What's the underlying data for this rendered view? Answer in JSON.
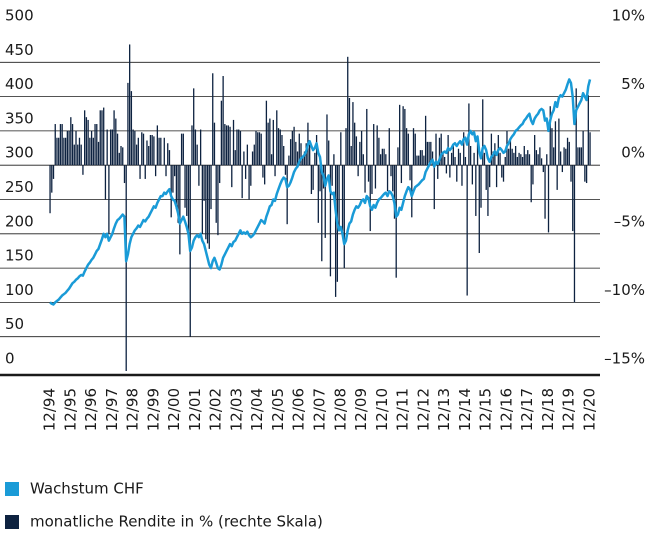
{
  "chart_data": {
    "type": "combo",
    "categories": [
      "12/94",
      null,
      null,
      null,
      null,
      null,
      null,
      null,
      null,
      null,
      null,
      null,
      "12/95",
      null,
      null,
      null,
      null,
      null,
      null,
      null,
      null,
      null,
      null,
      null,
      "12/96",
      null,
      null,
      null,
      null,
      null,
      null,
      null,
      null,
      null,
      null,
      null,
      "12/97",
      null,
      null,
      null,
      null,
      null,
      null,
      null,
      null,
      null,
      null,
      null,
      "12/98",
      null,
      null,
      null,
      null,
      null,
      null,
      null,
      null,
      null,
      null,
      null,
      "12/99",
      null,
      null,
      null,
      null,
      null,
      null,
      null,
      null,
      null,
      null,
      null,
      "12/00",
      null,
      null,
      null,
      null,
      null,
      null,
      null,
      null,
      null,
      null,
      null,
      "12/01",
      null,
      null,
      null,
      null,
      null,
      null,
      null,
      null,
      null,
      null,
      null,
      "12/02",
      null,
      null,
      null,
      null,
      null,
      null,
      null,
      null,
      null,
      null,
      null,
      "12/03",
      null,
      null,
      null,
      null,
      null,
      null,
      null,
      null,
      null,
      null,
      null,
      "12/04",
      null,
      null,
      null,
      null,
      null,
      null,
      null,
      null,
      null,
      null,
      null,
      "12/05",
      null,
      null,
      null,
      null,
      null,
      null,
      null,
      null,
      null,
      null,
      null,
      "12/06",
      null,
      null,
      null,
      null,
      null,
      null,
      null,
      null,
      null,
      null,
      null,
      "12/07",
      null,
      null,
      null,
      null,
      null,
      null,
      null,
      null,
      null,
      null,
      null,
      "12/08",
      null,
      null,
      null,
      null,
      null,
      null,
      null,
      null,
      null,
      null,
      null,
      "12/09",
      null,
      null,
      null,
      null,
      null,
      null,
      null,
      null,
      null,
      null,
      null,
      "12/10",
      null,
      null,
      null,
      null,
      null,
      null,
      null,
      null,
      null,
      null,
      null,
      "12/11",
      null,
      null,
      null,
      null,
      null,
      null,
      null,
      null,
      null,
      null,
      null,
      "12/12",
      null,
      null,
      null,
      null,
      null,
      null,
      null,
      null,
      null,
      null,
      null,
      "12/13",
      null,
      null,
      null,
      null,
      null,
      null,
      null,
      null,
      null,
      null,
      null,
      "12/14",
      null,
      null,
      null,
      null,
      null,
      null,
      null,
      null,
      null,
      null,
      null,
      "12/15",
      null,
      null,
      null,
      null,
      null,
      null,
      null,
      null,
      null,
      null,
      null,
      "12/16",
      null,
      null,
      null,
      null,
      null,
      null,
      null,
      null,
      null,
      null,
      null,
      "12/17",
      null,
      null,
      null,
      null,
      null,
      null,
      null,
      null,
      null,
      null,
      null,
      "12/18",
      null,
      null,
      null,
      null,
      null,
      null,
      null,
      null,
      null,
      null,
      null,
      "12/19",
      null,
      null,
      null,
      null,
      null,
      null,
      null,
      null,
      null,
      null,
      null,
      "12/20"
    ],
    "series": [
      {
        "name": "Wachstum CHF",
        "type": "line",
        "color": "#1a9bd7",
        "values": [
          100,
          98,
          97,
          100,
          102,
          104,
          107,
          110,
          112,
          114,
          117,
          120,
          124,
          128,
          130,
          133,
          135,
          138,
          140,
          139,
          145,
          150,
          155,
          158,
          162,
          165,
          170,
          175,
          178,
          185,
          192,
          200,
          195,
          200,
          190,
          195,
          200,
          208,
          215,
          220,
          222,
          225,
          228,
          225,
          160,
          170,
          185,
          195,
          200,
          205,
          208,
          212,
          210,
          215,
          220,
          218,
          222,
          225,
          230,
          235,
          240,
          238,
          245,
          250,
          255,
          255,
          260,
          258,
          262,
          265,
          255,
          250,
          248,
          240,
          230,
          215,
          220,
          225,
          218,
          210,
          200,
          175,
          180,
          190,
          195,
          198,
          195,
          200,
          190,
          185,
          175,
          165,
          155,
          150,
          160,
          165,
          158,
          150,
          148,
          155,
          165,
          170,
          175,
          180,
          185,
          182,
          188,
          190,
          195,
          200,
          205,
          200,
          202,
          200,
          203,
          198,
          195,
          197,
          200,
          205,
          210,
          215,
          220,
          218,
          215,
          225,
          232,
          240,
          242,
          250,
          248,
          258,
          265,
          272,
          278,
          282,
          280,
          268,
          270,
          275,
          282,
          290,
          295,
          298,
          305,
          310,
          312,
          315,
          320,
          330,
          335,
          328,
          322,
          325,
          332,
          318,
          312,
          290,
          285,
          270,
          280,
          285,
          262,
          258,
          260,
          235,
          215,
          205,
          210,
          200,
          185,
          190,
          205,
          215,
          218,
          228,
          235,
          240,
          238,
          242,
          248,
          250,
          245,
          255,
          252,
          240,
          235,
          242,
          238,
          245,
          250,
          252,
          255,
          258,
          260,
          255,
          262,
          260,
          255,
          245,
          225,
          228,
          238,
          235,
          245,
          255,
          262,
          268,
          265,
          255,
          262,
          268,
          270,
          272,
          275,
          278,
          280,
          290,
          295,
          300,
          305,
          308,
          298,
          305,
          302,
          308,
          315,
          318,
          320,
          318,
          325,
          322,
          325,
          330,
          332,
          328,
          332,
          335,
          330,
          338,
          340,
          330,
          345,
          350,
          345,
          348,
          335,
          342,
          320,
          310,
          325,
          328,
          322,
          310,
          305,
          312,
          315,
          320,
          315,
          322,
          325,
          322,
          318,
          320,
          328,
          332,
          338,
          342,
          345,
          350,
          352,
          355,
          358,
          360,
          365,
          368,
          372,
          375,
          365,
          360,
          368,
          372,
          375,
          380,
          382,
          380,
          365,
          368,
          350,
          365,
          375,
          380,
          392,
          385,
          398,
          402,
          400,
          405,
          410,
          418,
          425,
          420,
          400,
          360,
          380,
          385,
          390,
          395,
          405,
          400,
          395,
          415,
          425
        ]
      },
      {
        "name": "monatliche Rendite in % (rechte Skala)",
        "type": "bar",
        "axis": "y2",
        "color": "#0d2240",
        "values": [
          -3.5,
          -2,
          -1,
          3,
          2,
          2,
          3,
          3,
          2,
          2,
          2.5,
          2.5,
          3.5,
          3,
          1.5,
          2.5,
          1.5,
          2,
          1.5,
          -0.7,
          4,
          3.5,
          3.3,
          2,
          2.5,
          2,
          3,
          3,
          1.7,
          4,
          4,
          4.2,
          -2.5,
          2.6,
          -5,
          2.6,
          2.6,
          4,
          3.4,
          2.3,
          0.9,
          1.4,
          1.3,
          -1.3,
          -15,
          6,
          8.8,
          5.4,
          2.6,
          2.5,
          1.5,
          2,
          -1,
          2.4,
          2.3,
          -1,
          1.8,
          1.4,
          2.2,
          2.2,
          2.1,
          -0.8,
          2.9,
          2,
          2,
          0,
          2,
          -0.8,
          1.6,
          1.1,
          -3.8,
          -2,
          -0.8,
          -3.2,
          -4.2,
          -6.5,
          2.3,
          2.3,
          -3.1,
          -3.7,
          -4.8,
          -12.5,
          2.9,
          5.6,
          2.6,
          1.5,
          -1.5,
          2.6,
          -5,
          -2.6,
          -5.4,
          -5.7,
          -6.1,
          -3.2,
          6.7,
          3.1,
          -4.2,
          -5.1,
          -1.3,
          4.7,
          6.5,
          3,
          2.9,
          2.9,
          2.8,
          -1.6,
          3.3,
          1.1,
          2.6,
          2.6,
          2.5,
          -2.4,
          1,
          -1,
          1.5,
          -2.5,
          -1.5,
          1,
          1.5,
          2.5,
          2.4,
          2.4,
          2.3,
          -0.9,
          -1.4,
          4.7,
          3.1,
          3.4,
          0.8,
          3.3,
          -0.8,
          4,
          2.7,
          2.6,
          2.2,
          1.4,
          -0.7,
          -4.3,
          0.7,
          1.9,
          2.5,
          2.8,
          1.7,
          1,
          2.3,
          1.6,
          0.6,
          1,
          1.6,
          3.1,
          1.5,
          -2.1,
          -1.8,
          0.9,
          2.2,
          -4.2,
          -1.9,
          -7,
          -1.7,
          -5.3,
          3.7,
          1.8,
          -8.1,
          -1.5,
          0.8,
          -9.6,
          -8.5,
          -4.7,
          2.4,
          -4.8,
          -7.5,
          2.7,
          7.9,
          4.9,
          1.4,
          4.6,
          3.1,
          2.1,
          -0.8,
          1.7,
          2.5,
          0.8,
          -2,
          4.1,
          -1.2,
          -4.8,
          -2.1,
          3,
          -1.7,
          2.9,
          2,
          0.8,
          1.2,
          1.2,
          0.8,
          -1.9,
          2.7,
          -0.8,
          -1.9,
          -3.9,
          -8.2,
          1.3,
          4.4,
          -1.3,
          4.3,
          4.1,
          2.7,
          2.3,
          -1.1,
          -3.8,
          2.7,
          2.3,
          0.7,
          0.7,
          1.1,
          1.1,
          0.7,
          3.6,
          1.7,
          1.7,
          1.7,
          1,
          -3.2,
          2.3,
          -1,
          2,
          2.3,
          1,
          0.6,
          -0.6,
          2.2,
          -0.9,
          0.9,
          1.5,
          0.6,
          -1.2,
          1.2,
          0.9,
          -1.5,
          2.4,
          0.6,
          -9.5,
          4.5,
          1.4,
          -1.4,
          0.9,
          -3.7,
          2.1,
          -6.4,
          -3.1,
          4.8,
          0.9,
          -1.8,
          -3.7,
          -1.6,
          2.3,
          1,
          1.6,
          -1.6,
          2.2,
          0.9,
          -0.9,
          -1.2,
          0.6,
          2.5,
          1.2,
          1.8,
          1.2,
          0.9,
          1.4,
          0.6,
          0.9,
          0.8,
          0.6,
          1.4,
          0.8,
          1.1,
          0.8,
          -2.7,
          -1.4,
          2.2,
          1.1,
          0.8,
          1.3,
          0.5,
          -0.5,
          -3.9,
          0.8,
          -4.9,
          4.3,
          2.7,
          1.3,
          3.2,
          -1.8,
          3.4,
          1,
          -0.5,
          1.3,
          1.2,
          2,
          1.7,
          -1.2,
          -4.8,
          -10,
          5.6,
          1.3,
          1.3,
          1.3,
          2.5,
          -1.2,
          -1.3,
          5.1,
          2.4
        ]
      }
    ],
    "ylim": [
      0,
      500
    ],
    "yticks": [
      0,
      50,
      100,
      150,
      200,
      250,
      300,
      350,
      400,
      450,
      500
    ],
    "y2lim": [
      -15,
      10
    ],
    "y2ticks": [
      {
        "value": -15,
        "label": "–15%"
      },
      {
        "value": -10,
        "label": "–10%"
      },
      {
        "value": -5,
        "label": "–5%"
      },
      {
        "value": 0,
        "label": "0%"
      },
      {
        "value": 5,
        "label": "5%"
      },
      {
        "value": 10,
        "label": "10%"
      }
    ],
    "grid": true,
    "legend": "bottom-left"
  }
}
